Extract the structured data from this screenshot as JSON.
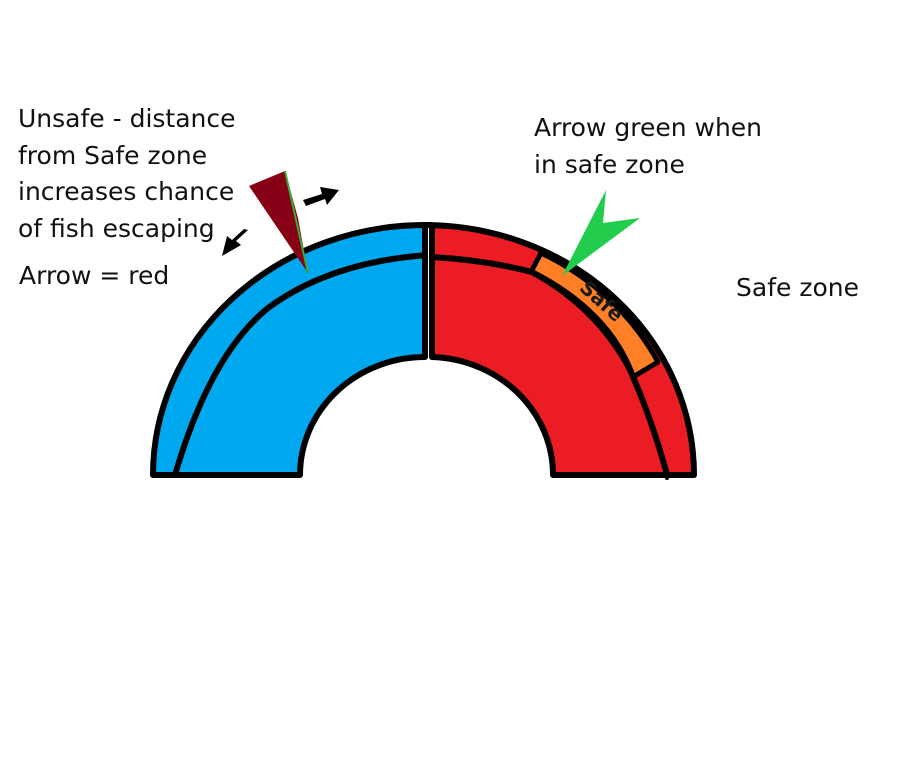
{
  "annotations": {
    "unsafe_line1": "Unsafe - distance",
    "unsafe_line2": "from Safe zone",
    "unsafe_line3": "increases chance",
    "unsafe_line4": "of fish escaping",
    "arrow_red": "Arrow = red",
    "green_line1": "Arrow green when",
    "green_line2": "in safe zone",
    "safe_zone": "Safe zone"
  },
  "gauge": {
    "safe_label": "Safe",
    "colors": {
      "unsafe_left": "#00a8f0",
      "unsafe_right": "#ec1c24",
      "safe": "#ff7f27",
      "outline": "#000000",
      "arrow_red": "#880015",
      "arrow_green": "#22cc4c",
      "motion_arrow": "#000000"
    }
  },
  "icons": {
    "red_arrow": "red-pointer-arrow",
    "green_arrow": "green-pointer-arrow",
    "motion_arrows": "direction-arrows"
  }
}
